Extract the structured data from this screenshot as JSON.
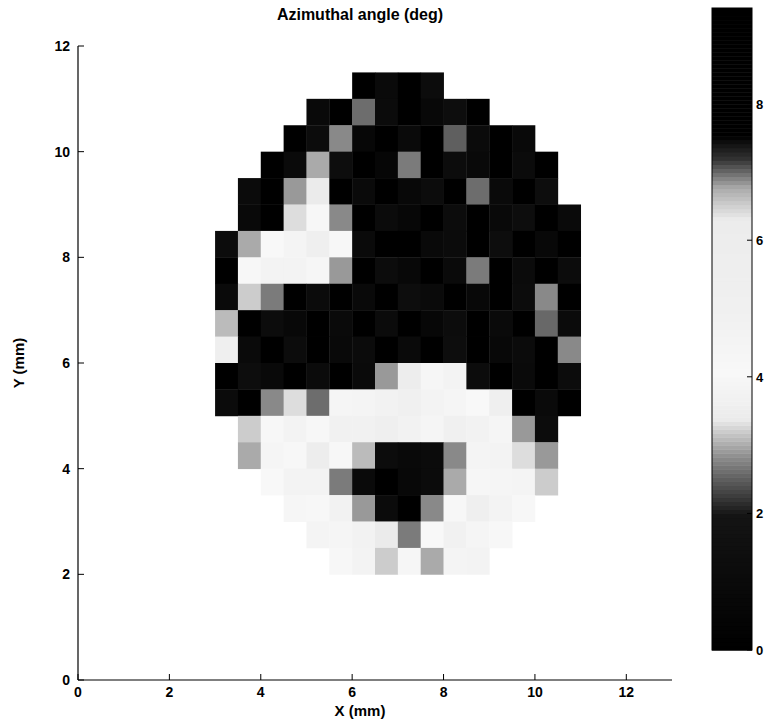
{
  "chart_data": {
    "type": "heatmap",
    "title": "Azimuthal angle (deg)",
    "x_label": "X (mm)",
    "y_label": "Y (mm)",
    "xlim": [
      0,
      13
    ],
    "ylim": [
      0,
      12
    ],
    "xticks": [
      0,
      2,
      4,
      6,
      8,
      10,
      12
    ],
    "yticks": [
      0,
      2,
      4,
      6,
      8,
      10,
      12
    ],
    "x": [
      3.25,
      3.75,
      4.25,
      4.75,
      5.25,
      5.75,
      6.25,
      6.75,
      7.25,
      7.75,
      8.25,
      8.75,
      9.25,
      9.75,
      10.25,
      10.75
    ],
    "y": [
      11.25,
      10.75,
      10.25,
      9.75,
      9.25,
      8.75,
      8.25,
      7.75,
      7.25,
      6.75,
      6.25,
      5.75,
      5.25,
      4.75,
      4.25,
      3.75,
      3.25,
      2.75,
      2.25
    ],
    "cells": [
      [
        null,
        null,
        null,
        null,
        null,
        null,
        8.8,
        1.0,
        8.6,
        1.2,
        null,
        null,
        null,
        null,
        null,
        null
      ],
      [
        null,
        null,
        null,
        null,
        0.9,
        8.7,
        2.6,
        1.1,
        8.9,
        0.8,
        1.3,
        8.5,
        null,
        null,
        null,
        null
      ],
      [
        null,
        null,
        null,
        8.8,
        1.2,
        2.8,
        0.7,
        8.6,
        1.0,
        8.9,
        2.5,
        1.1,
        8.7,
        0.9,
        null,
        null
      ],
      [
        null,
        null,
        8.9,
        1.0,
        3.0,
        1.3,
        8.8,
        0.6,
        2.7,
        8.7,
        1.2,
        0.9,
        8.6,
        1.1,
        8.8,
        null
      ],
      [
        null,
        1.1,
        8.7,
        2.9,
        3.4,
        8.9,
        1.0,
        8.5,
        0.8,
        1.2,
        8.9,
        2.6,
        1.0,
        8.7,
        1.3,
        null
      ],
      [
        null,
        0.9,
        8.6,
        3.3,
        4.2,
        2.8,
        8.7,
        1.1,
        0.7,
        8.8,
        1.2,
        8.6,
        0.9,
        1.3,
        8.8,
        1.0
      ],
      [
        1.2,
        3.0,
        4.1,
        4.5,
        3.6,
        4.0,
        1.0,
        8.8,
        8.6,
        0.9,
        1.1,
        8.7,
        1.3,
        8.5,
        0.8,
        8.9
      ],
      [
        8.8,
        4.0,
        4.6,
        3.8,
        4.3,
        2.9,
        8.7,
        1.2,
        0.8,
        8.9,
        1.0,
        2.7,
        8.6,
        1.1,
        8.8,
        1.2
      ],
      [
        1.0,
        3.2,
        2.7,
        8.9,
        1.1,
        8.6,
        0.9,
        8.8,
        1.3,
        1.0,
        8.7,
        0.8,
        8.9,
        1.2,
        2.8,
        8.6
      ],
      [
        3.1,
        8.7,
        1.2,
        0.8,
        8.8,
        1.0,
        8.6,
        1.1,
        8.9,
        0.7,
        1.2,
        8.8,
        1.0,
        8.7,
        7.0,
        1.1
      ],
      [
        3.6,
        1.0,
        8.9,
        1.2,
        8.7,
        0.9,
        1.1,
        8.8,
        1.0,
        8.6,
        1.3,
        8.9,
        0.8,
        1.1,
        8.7,
        2.8
      ],
      [
        8.6,
        1.3,
        0.9,
        8.7,
        1.1,
        8.8,
        1.0,
        2.9,
        3.5,
        4.3,
        3.8,
        1.2,
        8.7,
        1.0,
        8.9,
        1.2
      ],
      [
        1.1,
        8.8,
        2.8,
        3.3,
        2.6,
        3.9,
        4.5,
        4.8,
        5.0,
        4.6,
        4.4,
        4.1,
        3.6,
        8.8,
        1.0,
        8.7
      ],
      [
        null,
        3.2,
        4.2,
        4.6,
        4.0,
        3.7,
        4.9,
        5.2,
        4.7,
        4.4,
        5.1,
        4.8,
        3.9,
        2.9,
        1.2,
        null
      ],
      [
        null,
        3.0,
        4.4,
        4.0,
        3.5,
        4.2,
        3.1,
        1.2,
        0.9,
        1.1,
        2.8,
        4.5,
        3.8,
        3.3,
        2.9,
        null
      ],
      [
        null,
        null,
        4.1,
        4.6,
        3.8,
        2.7,
        1.0,
        8.8,
        0.8,
        1.1,
        3.0,
        4.3,
        3.9,
        4.5,
        3.2,
        null
      ],
      [
        null,
        null,
        null,
        4.3,
        4.0,
        4.7,
        2.9,
        1.1,
        8.7,
        2.8,
        4.2,
        3.6,
        4.6,
        4.0,
        null,
        null
      ],
      [
        null,
        null,
        null,
        null,
        4.5,
        3.9,
        4.8,
        3.4,
        2.7,
        4.1,
        3.7,
        4.4,
        4.2,
        null,
        null,
        null
      ],
      [
        null,
        null,
        null,
        null,
        null,
        4.0,
        4.6,
        3.2,
        4.3,
        3.0,
        4.5,
        3.8,
        null,
        null,
        null,
        null
      ]
    ],
    "colorbar": {
      "range": [
        0,
        9.4
      ],
      "ticks": [
        0,
        2,
        4,
        6,
        8
      ]
    }
  }
}
